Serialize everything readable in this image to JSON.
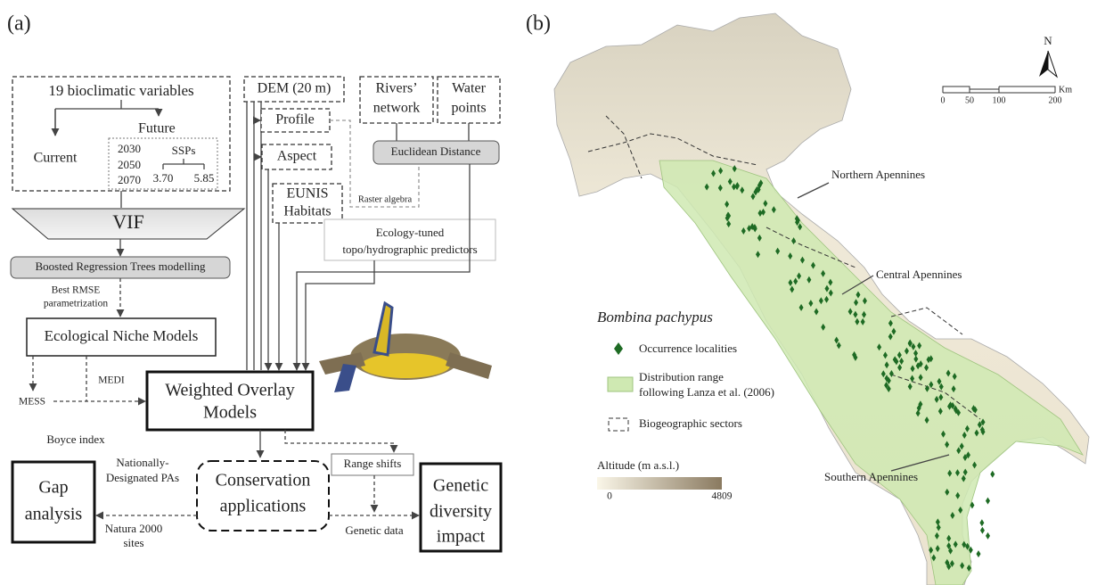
{
  "panel_a": {
    "label": "(a)",
    "bioclim": {
      "title": "19 bioclimatic variables",
      "current": "Current",
      "future": "Future",
      "years": [
        "2030",
        "2050",
        "2070"
      ],
      "ssps": "SSPs",
      "ssp_values": [
        "3.70",
        "5.85"
      ]
    },
    "vif": "VIF",
    "brt": "Boosted Regression Trees modelling",
    "brt_note": [
      "Best RMSE",
      "parametrization"
    ],
    "enm": "Ecological Niche Models",
    "mess": "MESS",
    "medi": "MEDI",
    "boyce": "Boyce index",
    "wom": [
      "Weighted Overlay",
      "Models"
    ],
    "dem": "DEM (20 m)",
    "profile": "Profile",
    "aspect": "Aspect",
    "eunis": [
      "EUNIS",
      "Habitats"
    ],
    "rivers": [
      "Rivers’",
      "network"
    ],
    "water": [
      "Water",
      "points"
    ],
    "euclid": "Euclidean Distance",
    "raster": "Raster algebra",
    "eco": [
      "Ecology-tuned",
      "topo/hydrographic predictors"
    ],
    "range_shifts": "Range shifts",
    "gap": [
      "Gap",
      "analysis"
    ],
    "conservation": [
      "Conservation",
      "applications"
    ],
    "genetic": [
      "Genetic",
      "diversity",
      "impact"
    ],
    "pas": [
      "Nationally-",
      "Designated PAs"
    ],
    "natura": [
      "Natura 2000",
      "sites"
    ],
    "genetic_data": "Genetic data"
  },
  "panel_b": {
    "label": "(b)",
    "north": "N",
    "scale": [
      "0",
      "50",
      "100",
      "200"
    ],
    "scale_unit": "Km",
    "regions": [
      "Northern Apennines",
      "Central Apennines",
      "Southern Apennines"
    ],
    "legend": {
      "species": "Bombina pachypus",
      "occurrence": "Occurrence localities",
      "range": [
        "Distribution range",
        "following Lanza et al. (2006)"
      ],
      "sectors": "Biogeographic sectors"
    },
    "altitude": {
      "title": "Altitude (m a.s.l.)",
      "min": "0",
      "max": "4809"
    }
  }
}
